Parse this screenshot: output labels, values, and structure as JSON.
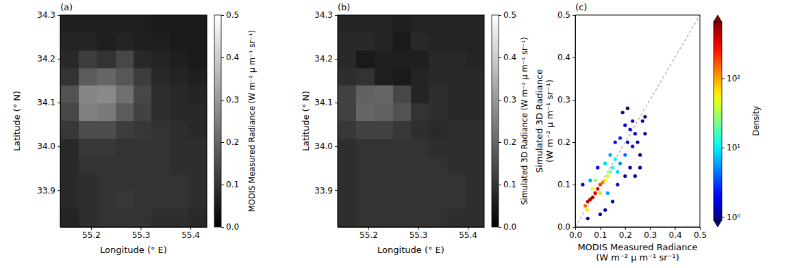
{
  "chart_data": [
    {
      "type": "heatmap",
      "panel_label": "(a)",
      "x_label": "Longitude (° E)",
      "y_label": "Latitude (° N)",
      "xlim": [
        55.138,
        55.433
      ],
      "ylim": [
        33.816,
        34.3
      ],
      "xticks": [
        55.2,
        55.3,
        55.4
      ],
      "yticks": [
        33.9,
        {
          "value": 34,
          "label": "34.0"
        },
        34.1,
        34.2,
        34.3
      ],
      "x_edges": [
        55.138,
        55.175,
        55.212,
        55.249,
        55.286,
        55.322,
        55.359,
        55.396,
        55.433
      ],
      "y_edges": [
        34.3,
        34.26,
        34.219,
        34.179,
        34.139,
        34.098,
        34.058,
        34.018,
        33.977,
        33.937,
        33.897,
        33.856,
        33.816
      ],
      "cells": [
        [
          0.06,
          0.06,
          0.06,
          0.06,
          0.06,
          0.05,
          0.05,
          0.05
        ],
        [
          0.07,
          0.07,
          0.06,
          0.07,
          0.06,
          0.06,
          0.05,
          0.05
        ],
        [
          0.08,
          0.12,
          0.1,
          0.14,
          0.08,
          0.07,
          0.06,
          0.05
        ],
        [
          0.1,
          0.18,
          0.2,
          0.17,
          0.12,
          0.08,
          0.07,
          0.06
        ],
        [
          0.16,
          0.26,
          0.27,
          0.22,
          0.14,
          0.09,
          0.08,
          0.07
        ],
        [
          0.14,
          0.25,
          0.24,
          0.18,
          0.13,
          0.09,
          0.08,
          0.08
        ],
        [
          0.11,
          0.15,
          0.15,
          0.12,
          0.11,
          0.1,
          0.09,
          0.08
        ],
        [
          0.08,
          0.11,
          0.11,
          0.1,
          0.1,
          0.1,
          0.09,
          0.09
        ],
        [
          0.08,
          0.1,
          0.1,
          0.1,
          0.1,
          0.1,
          0.09,
          0.09
        ],
        [
          0.08,
          0.09,
          0.1,
          0.1,
          0.1,
          0.1,
          0.1,
          0.09
        ],
        [
          0.08,
          0.09,
          0.1,
          0.11,
          0.1,
          0.1,
          0.1,
          0.09
        ],
        [
          0.07,
          0.09,
          0.1,
          0.1,
          0.1,
          0.09,
          0.09,
          0.08
        ]
      ],
      "colorbar": {
        "label": "MODIS Measured Radiance (W m⁻² μ m⁻¹ sr⁻¹)",
        "color": "gray",
        "range": [
          0,
          0.5
        ],
        "ticks": [
          {
            "value": 0,
            "label": "0.0"
          },
          0.1,
          0.2,
          0.3,
          0.4,
          0.5
        ]
      }
    },
    {
      "type": "heatmap",
      "panel_label": "(b)",
      "x_label": "Longitude (° E)",
      "y_label": "Latitude (° N)",
      "xlim": [
        55.138,
        55.433
      ],
      "ylim": [
        33.816,
        34.3
      ],
      "xticks": [
        55.2,
        55.3,
        55.4
      ],
      "yticks": [
        33.9,
        {
          "value": 34,
          "label": "34.0"
        },
        34.1,
        34.2,
        34.3
      ],
      "x_edges": [
        55.138,
        55.175,
        55.212,
        55.249,
        55.286,
        55.322,
        55.359,
        55.396,
        55.433
      ],
      "y_edges": [
        34.3,
        34.26,
        34.219,
        34.179,
        34.139,
        34.098,
        34.058,
        34.018,
        33.977,
        33.937,
        33.897,
        33.856,
        33.816
      ],
      "cells": [
        [
          0.07,
          0.07,
          0.07,
          0.06,
          0.07,
          0.07,
          0.07,
          0.07
        ],
        [
          0.08,
          0.08,
          0.07,
          0.05,
          0.08,
          0.07,
          0.07,
          0.07
        ],
        [
          0.08,
          0.05,
          0.06,
          0.06,
          0.06,
          0.08,
          0.08,
          0.07
        ],
        [
          0.09,
          0.1,
          0.06,
          0.05,
          0.07,
          0.08,
          0.08,
          0.08
        ],
        [
          0.13,
          0.19,
          0.2,
          0.14,
          0.07,
          0.09,
          0.08,
          0.08
        ],
        [
          0.13,
          0.2,
          0.19,
          0.16,
          0.1,
          0.09,
          0.08,
          0.08
        ],
        [
          0.11,
          0.13,
          0.13,
          0.11,
          0.09,
          0.08,
          0.09,
          0.09
        ],
        [
          0.09,
          0.1,
          0.1,
          0.1,
          0.1,
          0.09,
          0.09,
          0.09
        ],
        [
          0.09,
          0.1,
          0.1,
          0.1,
          0.1,
          0.1,
          0.09,
          0.09
        ],
        [
          0.09,
          0.1,
          0.1,
          0.1,
          0.1,
          0.1,
          0.1,
          0.09
        ],
        [
          0.09,
          0.1,
          0.1,
          0.1,
          0.1,
          0.1,
          0.1,
          0.09
        ],
        [
          0.09,
          0.1,
          0.1,
          0.1,
          0.1,
          0.1,
          0.09,
          0.09
        ]
      ],
      "colorbar": {
        "label": "Simulated 3D Radiance (W m⁻² μ m⁻¹ sr⁻¹)",
        "color": "gray",
        "range": [
          0,
          0.5
        ],
        "ticks": [
          {
            "value": 0,
            "label": "0.0"
          },
          0.1,
          0.2,
          0.3,
          0.4,
          0.5
        ]
      }
    },
    {
      "type": "scatter",
      "panel_label": "(c)",
      "x_label": [
        "MODIS Measured Radiance",
        "(W m⁻² μ m⁻¹ sr⁻¹)"
      ],
      "y_label": [
        "Simulated 3D Radiance",
        "(W m⁻² μ m⁻¹ sr⁻¹)"
      ],
      "xlim": [
        0,
        0.5
      ],
      "ylim": [
        0,
        0.5
      ],
      "xticks": [
        {
          "value": 0,
          "label": "0.0"
        },
        0.1,
        0.2,
        0.3,
        0.4,
        0.5
      ],
      "yticks": [
        {
          "value": 0,
          "label": "0.0"
        },
        0.1,
        0.2,
        0.3,
        0.4,
        0.5
      ],
      "x": [
        0.21,
        0.22,
        0.24,
        0.25,
        0.27,
        0.28,
        0.2,
        0.19,
        0.23,
        0.26,
        0.18,
        0.16,
        0.17,
        0.2,
        0.22,
        0.24,
        0.15,
        0.12,
        0.1,
        0.03,
        0.09,
        0.26,
        0.28,
        0.21,
        0.23,
        0.05,
        0.15,
        0.16,
        0.12,
        0.17,
        0.14,
        0.18,
        0.06,
        0.13,
        0.2,
        0.12,
        0.13,
        0.07,
        0.05,
        0.1,
        0.08,
        0.14,
        0.04,
        0.11,
        0.1,
        0.09,
        0.08,
        0.05,
        0.07,
        0.06
      ],
      "y": [
        0.2,
        0.23,
        0.22,
        0.2,
        0.25,
        0.26,
        0.24,
        0.27,
        0.19,
        0.17,
        0.21,
        0.2,
        0.1,
        0.12,
        0.14,
        0.12,
        0.06,
        0.04,
        0.03,
        0.1,
        0.14,
        0.14,
        0.22,
        0.28,
        0.25,
        0.02,
        0.14,
        0.16,
        0.15,
        0.13,
        0.17,
        0.15,
        0.11,
        0.08,
        0.17,
        0.11,
        0.12,
        0.09,
        0.04,
        0.08,
        0.11,
        0.13,
        0.05,
        0.105,
        0.1,
        0.09,
        0.08,
        0.06,
        0.07,
        0.065
      ],
      "density": [
        2,
        2,
        1.5,
        1.2,
        1,
        1,
        1.5,
        1,
        2,
        1,
        2.5,
        2,
        1.5,
        1,
        1.2,
        1,
        1,
        1.2,
        1.2,
        1.5,
        2,
        1,
        1,
        1,
        1.5,
        1,
        12,
        10,
        8,
        8,
        6,
        5,
        6,
        6,
        4,
        60,
        40,
        50,
        60,
        70,
        30,
        25,
        150,
        120,
        200,
        300,
        350,
        400,
        450,
        500
      ],
      "colorbar": {
        "label": "Density",
        "color": "jet",
        "log": true,
        "range": [
          0.9,
          650
        ],
        "ticks": [
          {
            "value": 1,
            "label": "10⁰"
          },
          {
            "value": 10,
            "label": "10¹"
          },
          {
            "value": 100,
            "label": "10²"
          }
        ]
      }
    }
  ]
}
